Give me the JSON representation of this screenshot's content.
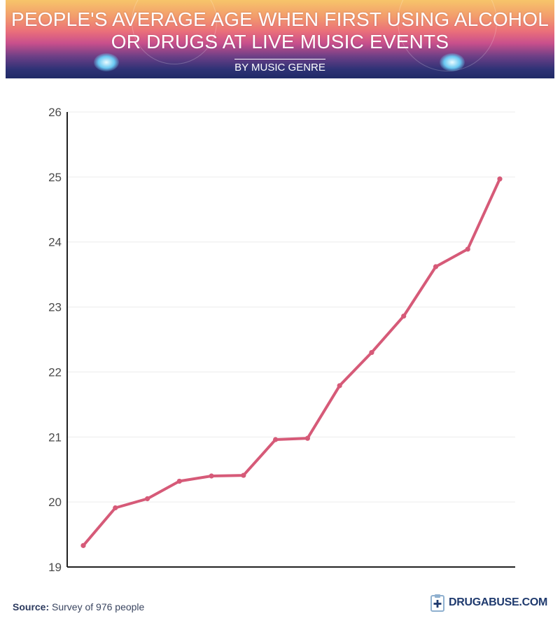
{
  "header": {
    "title_line1": "PEOPLE'S AVERAGE AGE WHEN FIRST USING ALCOHOL",
    "title_line2": "OR DRUGS AT LIVE MUSIC EVENTS",
    "subtitle": "BY MUSIC GENRE"
  },
  "footer": {
    "source_label": "Source:",
    "source_text": " Survey of 976 people",
    "brand": "DRUGABUSE.COM"
  },
  "colors": {
    "line": "#d65a78",
    "axis": "#222222",
    "grid": "#ececec"
  },
  "chart_data": {
    "type": "line",
    "title": "PEOPLE'S AVERAGE AGE WHEN FIRST USING ALCOHOL OR DRUGS AT LIVE MUSIC EVENTS",
    "subtitle": "BY MUSIC GENRE",
    "xlabel": "",
    "ylabel": "",
    "ylim": [
      19,
      26
    ],
    "yticks": [
      19,
      20,
      21,
      22,
      23,
      24,
      25,
      26
    ],
    "grid": true,
    "legend": "none",
    "series": [
      {
        "values": [
          19.33,
          19.91,
          20.05,
          20.32,
          20.4,
          20.41,
          20.96,
          20.98,
          21.79,
          22.3,
          22.86,
          23.62,
          23.89,
          24.97
        ]
      }
    ]
  }
}
